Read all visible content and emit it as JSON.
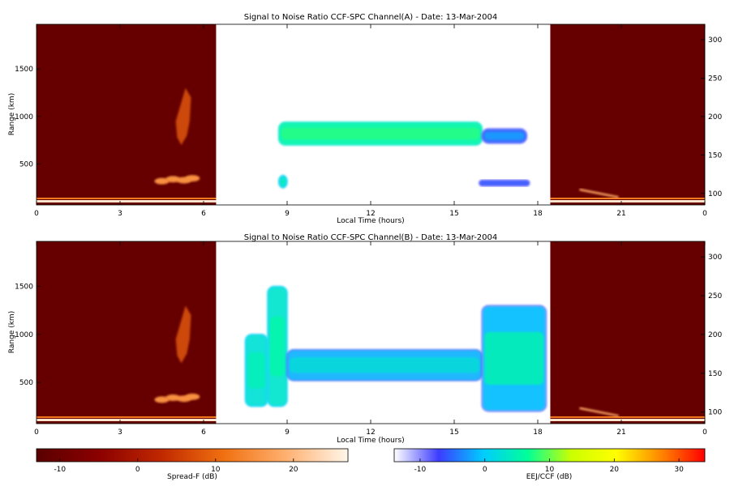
{
  "chart_data": [
    {
      "type": "heatmap",
      "title": "Signal to Noise Ratio CCF-SPC Channel(A) - Date: 13-Mar-2004",
      "xlabel": "Local Time (hours)",
      "ylabel": "Range (km)",
      "xlim": [
        0,
        24
      ],
      "ylim_left": [
        70,
        1970
      ],
      "ylim_right": [
        85,
        320
      ],
      "xticks": [
        "0",
        "3",
        "6",
        "9",
        "12",
        "15",
        "18",
        "21",
        "0"
      ],
      "yticks_left": [
        "500",
        "1000",
        "1500"
      ],
      "yticks_right": [
        "100",
        "150",
        "200",
        "250",
        "300"
      ],
      "grid": false,
      "regions": [
        {
          "name": "Spread-F",
          "x": [
            0,
            6.45
          ],
          "colormap": "spreadf"
        },
        {
          "name": "EEJ/CCF",
          "x": [
            6.45,
            18.45
          ],
          "colormap": "eej"
        },
        {
          "name": "Spread-F",
          "x": [
            18.45,
            24
          ],
          "colormap": "spreadf"
        }
      ],
      "features": [
        {
          "x": [
            8.7,
            16.0
          ],
          "y": [
            700,
            940
          ],
          "db": [
            3,
            8
          ]
        },
        {
          "x": [
            16.0,
            17.6
          ],
          "y": [
            720,
            870
          ],
          "db": [
            -8,
            -2
          ]
        },
        {
          "x": [
            8.7,
            9.0
          ],
          "y": [
            250,
            380
          ],
          "db": [
            0,
            5
          ]
        },
        {
          "x": [
            15.9,
            17.7
          ],
          "y": [
            270,
            330
          ],
          "db": [
            -8,
            -4
          ]
        }
      ]
    },
    {
      "type": "heatmap",
      "title": "Signal to Noise Ratio CCF-SPC Channel(B) - Date: 13-Mar-2004",
      "xlabel": "Local Time (hours)",
      "ylabel": "Range (km)",
      "xlim": [
        0,
        24
      ],
      "ylim_left": [
        70,
        1970
      ],
      "ylim_right": [
        85,
        320
      ],
      "xticks": [
        "0",
        "3",
        "6",
        "9",
        "12",
        "15",
        "18",
        "21",
        "0"
      ],
      "yticks_left": [
        "500",
        "1000",
        "1500"
      ],
      "yticks_right": [
        "100",
        "150",
        "200",
        "250",
        "300"
      ],
      "grid": false,
      "regions": [
        {
          "name": "Spread-F",
          "x": [
            0,
            6.45
          ],
          "colormap": "spreadf"
        },
        {
          "name": "EEJ/CCF",
          "x": [
            6.45,
            18.45
          ],
          "colormap": "eej"
        },
        {
          "name": "Spread-F",
          "x": [
            18.45,
            24
          ],
          "colormap": "spreadf"
        }
      ],
      "features": [
        {
          "x": [
            7.5,
            8.3
          ],
          "y": [
            250,
            1000
          ],
          "db": [
            0,
            5
          ]
        },
        {
          "x": [
            8.3,
            9.0
          ],
          "y": [
            250,
            1500
          ],
          "db": [
            0,
            6
          ]
        },
        {
          "x": [
            9.0,
            16.0
          ],
          "y": [
            520,
            840
          ],
          "db": [
            -6,
            3
          ]
        },
        {
          "x": [
            16.0,
            18.3
          ],
          "y": [
            200,
            1300
          ],
          "db": [
            -8,
            6
          ]
        }
      ]
    }
  ],
  "colorbars": [
    {
      "label": "Spread-F (dB)",
      "ticks": [
        "-10",
        "0",
        "10",
        "20"
      ],
      "range": [
        -13,
        27
      ],
      "colors": [
        "#5a0000",
        "#8b0000",
        "#c02800",
        "#f07010",
        "#ffb070",
        "#fff6ea"
      ]
    },
    {
      "label": "EEJ/CCF (dB)",
      "ticks": [
        "-10",
        "0",
        "10",
        "20",
        "30"
      ],
      "range": [
        -14,
        34
      ],
      "colors": [
        "#ffffff",
        "#3c3cff",
        "#00ccff",
        "#00ff99",
        "#ccff00",
        "#ffff00",
        "#ff8800",
        "#ff0000"
      ]
    }
  ],
  "colors": {
    "spreadf_background": "#660000",
    "eej_background": "#ffffff"
  }
}
